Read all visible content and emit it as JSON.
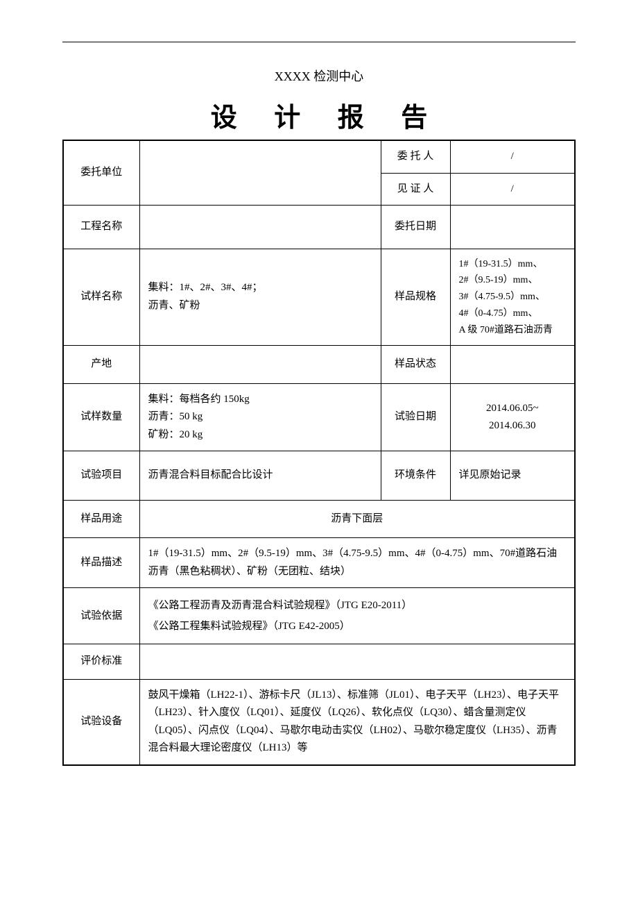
{
  "header_line": "",
  "center_name": "XXXX 检测中心",
  "title": "设 计 报 告",
  "rows": {
    "wtdw_label": "委托单位",
    "wtdw_value": "",
    "wtr_label": "委 托 人",
    "wtr_value": "/",
    "jzr_label": "见 证 人",
    "jzr_value": "/",
    "gcmc_label": "工程名称",
    "gcmc_value": "",
    "wtrq_label": "委托日期",
    "wtrq_value": "",
    "symc_label": "试样名称",
    "symc_value": "集料：1#、2#、3#、4#；\n沥青、矿粉",
    "ypgg_label": "样品规格",
    "ypgg_value": "1#（19-31.5）mm、\n2#（9.5-19）mm、\n3#（4.75-9.5）mm、\n4#（0-4.75）mm、\nA 级 70#道路石油沥青",
    "cd_label": "产地",
    "cd_value": "",
    "ypzt_label": "样品状态",
    "ypzt_value": "",
    "sysl_label": "试样数量",
    "sysl_value": "集料：每档各约 150kg\n沥青：50 kg\n矿粉：20 kg",
    "syrq_label": "试验日期",
    "syrq_value": "2014.06.05~\n2014.06.30",
    "syxm_label": "试验项目",
    "syxm_value": "沥青混合料目标配合比设计",
    "hjtj_label": "环境条件",
    "hjtj_value": "详见原始记录",
    "ypyt_label": "样品用途",
    "ypyt_value": "沥青下面层",
    "ypms_label": "样品描述",
    "ypms_value": "1#（19-31.5）mm、2#（9.5-19）mm、3#（4.75-9.5）mm、4#（0-4.75）mm、70#道路石油沥青（黑色粘稠状）、矿粉（无团粒、结块）",
    "syyj_label": "试验依据",
    "syyj_value": "《公路工程沥青及沥青混合料试验规程》（JTG E20-2011）\n《公路工程集料试验规程》（JTG E42-2005）",
    "pjbz_label": "评价标准",
    "pjbz_value": "",
    "sysb_label": "试验设备",
    "sysb_value": "鼓风干燥箱（LH22-1）、游标卡尺（JL13）、标准筛（JL01）、电子天平（LH23）、电子天平（LH23）、针入度仪（LQ01）、延度仪（LQ26）、软化点仪（LQ30）、蜡含量测定仪（LQ05）、闪点仪（LQ04）、马歇尔电动击实仪（LH02）、马歇尔稳定度仪（LH35）、沥青混合料最大理论密度仪（LH13）等"
  }
}
